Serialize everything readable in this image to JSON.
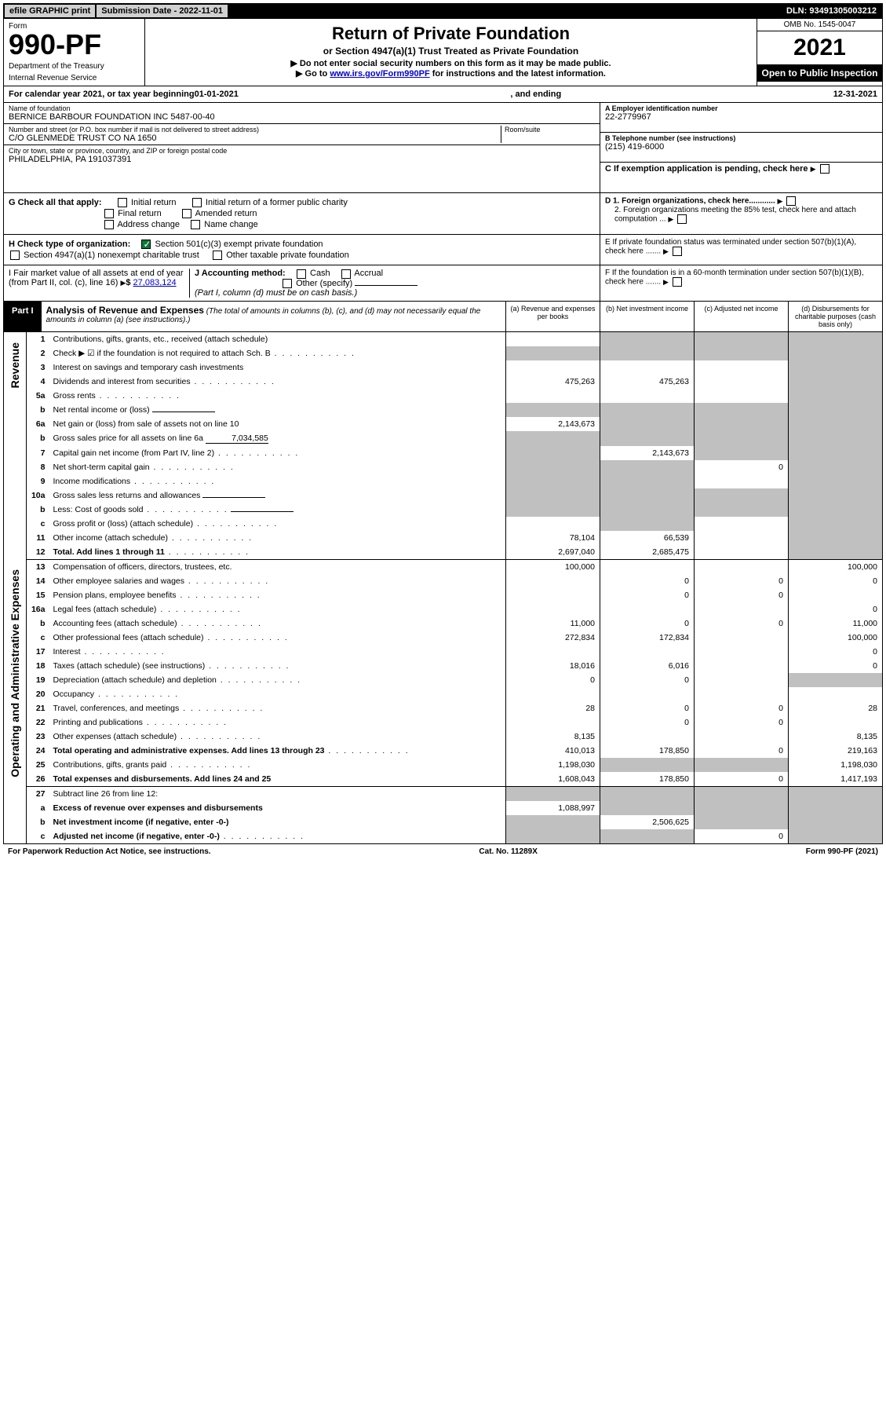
{
  "topbar": {
    "efile": "efile GRAPHIC print",
    "subdate_lbl": "Submission Date - 2022-11-01",
    "dln": "DLN: 93491305003212"
  },
  "header": {
    "form_lbl": "Form",
    "form_no": "990-PF",
    "dept": "Department of the Treasury",
    "irs": "Internal Revenue Service",
    "title": "Return of Private Foundation",
    "subtitle": "or Section 4947(a)(1) Trust Treated as Private Foundation",
    "note1": "▶ Do not enter social security numbers on this form as it may be made public.",
    "note2_pre": "▶ Go to ",
    "note2_link": "www.irs.gov/Form990PF",
    "note2_post": " for instructions and the latest information.",
    "omb": "OMB No. 1545-0047",
    "year": "2021",
    "open": "Open to Public Inspection"
  },
  "calrow": {
    "pre": "For calendar year 2021, or tax year beginning ",
    "begin": "01-01-2021",
    "mid": " , and ending ",
    "end": "12-31-2021"
  },
  "entity": {
    "name_lbl": "Name of foundation",
    "name": "BERNICE BARBOUR FOUNDATION INC 5487-00-40",
    "addr_lbl": "Number and street (or P.O. box number if mail is not delivered to street address)",
    "addr": "C/O GLENMEDE TRUST CO NA 1650",
    "room_lbl": "Room/suite",
    "city_lbl": "City or town, state or province, country, and ZIP or foreign postal code",
    "city": "PHILADELPHIA, PA  191037391",
    "ein_lbl": "A Employer identification number",
    "ein": "22-2779967",
    "tel_lbl": "B Telephone number (see instructions)",
    "tel": "(215) 419-6000",
    "c_lbl": "C If exemption application is pending, check here"
  },
  "checks": {
    "g_lbl": "G Check all that apply:",
    "g_opts": [
      "Initial return",
      "Initial return of a former public charity",
      "Final return",
      "Amended return",
      "Address change",
      "Name change"
    ],
    "h_lbl": "H Check type of organization:",
    "h1": "Section 501(c)(3) exempt private foundation",
    "h2": "Section 4947(a)(1) nonexempt charitable trust",
    "h3": "Other taxable private foundation",
    "i_lbl": "I Fair market value of all assets at end of year (from Part II, col. (c), line 16)",
    "i_amt": "27,083,124",
    "j_lbl": "J Accounting method:",
    "j_cash": "Cash",
    "j_accrual": "Accrual",
    "j_other": "Other (specify)",
    "j_note": "(Part I, column (d) must be on cash basis.)",
    "d1": "D 1. Foreign organizations, check here............",
    "d2": "2. Foreign organizations meeting the 85% test, check here and attach computation ...",
    "e_lbl": "E  If private foundation status was terminated under section 507(b)(1)(A), check here .......",
    "f_lbl": "F  If the foundation is in a 60-month termination under section 507(b)(1)(B), check here ......."
  },
  "part1": {
    "lbl": "Part I",
    "title": "Analysis of Revenue and Expenses",
    "note": "(The total of amounts in columns (b), (c), and (d) may not necessarily equal the amounts in column (a) (see instructions).)",
    "cols": [
      "(a) Revenue and expenses per books",
      "(b) Net investment income",
      "(c) Adjusted net income",
      "(d) Disbursements for charitable purposes (cash basis only)"
    ]
  },
  "sides": {
    "rev": "Revenue",
    "exp": "Operating and Administrative Expenses"
  },
  "rows": [
    {
      "n": "1",
      "d": "Contributions, gifts, grants, etc., received (attach schedule)",
      "a": "",
      "b": "g",
      "c": "g",
      "dd": "g"
    },
    {
      "n": "2",
      "d": "Check ▶ ☑ if the foundation is not required to attach Sch. B",
      "dots": 1,
      "a": "g",
      "b": "g",
      "c": "g",
      "dd": "g"
    },
    {
      "n": "3",
      "d": "Interest on savings and temporary cash investments",
      "a": "",
      "b": "",
      "c": "",
      "dd": "g"
    },
    {
      "n": "4",
      "d": "Dividends and interest from securities",
      "dots": 1,
      "a": "475,263",
      "b": "475,263",
      "c": "",
      "dd": "g"
    },
    {
      "n": "5a",
      "d": "Gross rents",
      "dots": 1,
      "a": "",
      "b": "",
      "c": "",
      "dd": "g"
    },
    {
      "n": "b",
      "d": "Net rental income or (loss)",
      "u": 1,
      "a": "g",
      "b": "g",
      "c": "g",
      "dd": "g"
    },
    {
      "n": "6a",
      "d": "Net gain or (loss) from sale of assets not on line 10",
      "a": "2,143,673",
      "b": "g",
      "c": "g",
      "dd": "g"
    },
    {
      "n": "b",
      "d": "Gross sales price for all assets on line 6a",
      "u": 1,
      "uval": "7,034,585",
      "a": "g",
      "b": "g",
      "c": "g",
      "dd": "g"
    },
    {
      "n": "7",
      "d": "Capital gain net income (from Part IV, line 2)",
      "dots": 1,
      "a": "g",
      "b": "2,143,673",
      "c": "g",
      "dd": "g"
    },
    {
      "n": "8",
      "d": "Net short-term capital gain",
      "dots": 1,
      "a": "g",
      "b": "g",
      "c": "0",
      "dd": "g"
    },
    {
      "n": "9",
      "d": "Income modifications",
      "dots": 1,
      "a": "g",
      "b": "g",
      "c": "",
      "dd": "g"
    },
    {
      "n": "10a",
      "d": "Gross sales less returns and allowances",
      "u": 1,
      "a": "g",
      "b": "g",
      "c": "g",
      "dd": "g"
    },
    {
      "n": "b",
      "d": "Less: Cost of goods sold",
      "dots": 1,
      "u": 1,
      "a": "g",
      "b": "g",
      "c": "g",
      "dd": "g"
    },
    {
      "n": "c",
      "d": "Gross profit or (loss) (attach schedule)",
      "dots": 1,
      "a": "",
      "b": "g",
      "c": "",
      "dd": "g"
    },
    {
      "n": "11",
      "d": "Other income (attach schedule)",
      "dots": 1,
      "a": "78,104",
      "b": "66,539",
      "c": "",
      "dd": "g"
    },
    {
      "n": "12",
      "d": "Total. Add lines 1 through 11",
      "dots": 1,
      "bold": 1,
      "bord": 1,
      "a": "2,697,040",
      "b": "2,685,475",
      "c": "",
      "dd": "g"
    },
    {
      "n": "13",
      "d": "Compensation of officers, directors, trustees, etc.",
      "a": "100,000",
      "b": "",
      "c": "",
      "dd": "100,000"
    },
    {
      "n": "14",
      "d": "Other employee salaries and wages",
      "dots": 1,
      "a": "",
      "b": "0",
      "c": "0",
      "dd": "0"
    },
    {
      "n": "15",
      "d": "Pension plans, employee benefits",
      "dots": 1,
      "a": "",
      "b": "0",
      "c": "0",
      "dd": ""
    },
    {
      "n": "16a",
      "d": "Legal fees (attach schedule)",
      "dots": 1,
      "a": "",
      "b": "",
      "c": "",
      "dd": "0"
    },
    {
      "n": "b",
      "d": "Accounting fees (attach schedule)",
      "dots": 1,
      "a": "11,000",
      "b": "0",
      "c": "0",
      "dd": "11,000"
    },
    {
      "n": "c",
      "d": "Other professional fees (attach schedule)",
      "dots": 1,
      "a": "272,834",
      "b": "172,834",
      "c": "",
      "dd": "100,000"
    },
    {
      "n": "17",
      "d": "Interest",
      "dots": 1,
      "a": "",
      "b": "",
      "c": "",
      "dd": "0"
    },
    {
      "n": "18",
      "d": "Taxes (attach schedule) (see instructions)",
      "dots": 1,
      "a": "18,016",
      "b": "6,016",
      "c": "",
      "dd": "0"
    },
    {
      "n": "19",
      "d": "Depreciation (attach schedule) and depletion",
      "dots": 1,
      "a": "0",
      "b": "0",
      "c": "",
      "dd": "g"
    },
    {
      "n": "20",
      "d": "Occupancy",
      "dots": 1,
      "a": "",
      "b": "",
      "c": "",
      "dd": ""
    },
    {
      "n": "21",
      "d": "Travel, conferences, and meetings",
      "dots": 1,
      "a": "28",
      "b": "0",
      "c": "0",
      "dd": "28"
    },
    {
      "n": "22",
      "d": "Printing and publications",
      "dots": 1,
      "a": "",
      "b": "0",
      "c": "0",
      "dd": ""
    },
    {
      "n": "23",
      "d": "Other expenses (attach schedule)",
      "dots": 1,
      "a": "8,135",
      "b": "",
      "c": "",
      "dd": "8,135"
    },
    {
      "n": "24",
      "d": "Total operating and administrative expenses. Add lines 13 through 23",
      "dots": 1,
      "bold": 1,
      "a": "410,013",
      "b": "178,850",
      "c": "0",
      "dd": "219,163"
    },
    {
      "n": "25",
      "d": "Contributions, gifts, grants paid",
      "dots": 1,
      "a": "1,198,030",
      "b": "g",
      "c": "g",
      "dd": "1,198,030"
    },
    {
      "n": "26",
      "d": "Total expenses and disbursements. Add lines 24 and 25",
      "bold": 1,
      "bord": 1,
      "a": "1,608,043",
      "b": "178,850",
      "c": "0",
      "dd": "1,417,193"
    },
    {
      "n": "27",
      "d": "Subtract line 26 from line 12:",
      "a": "g",
      "b": "g",
      "c": "g",
      "dd": "g"
    },
    {
      "n": "a",
      "d": "Excess of revenue over expenses and disbursements",
      "bold": 1,
      "a": "1,088,997",
      "b": "g",
      "c": "g",
      "dd": "g"
    },
    {
      "n": "b",
      "d": "Net investment income (if negative, enter -0-)",
      "bold": 1,
      "a": "g",
      "b": "2,506,625",
      "c": "g",
      "dd": "g"
    },
    {
      "n": "c",
      "d": "Adjusted net income (if negative, enter -0-)",
      "dots": 1,
      "bold": 1,
      "a": "g",
      "b": "g",
      "c": "0",
      "dd": "g"
    }
  ],
  "footer": {
    "left": "For Paperwork Reduction Act Notice, see instructions.",
    "mid": "Cat. No. 11289X",
    "right": "Form 990-PF (2021)"
  }
}
